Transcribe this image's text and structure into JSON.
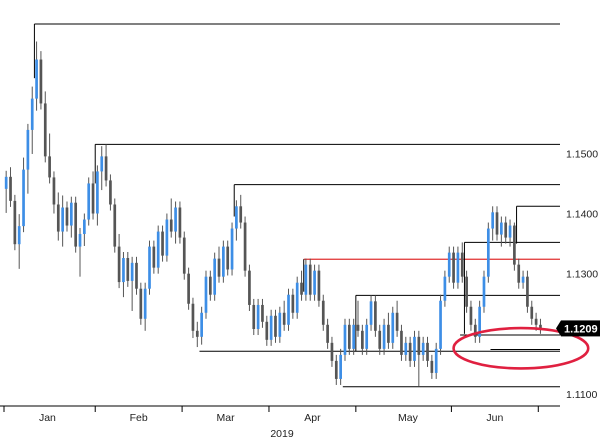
{
  "chart_data": {
    "type": "candlestick",
    "title": "",
    "xlabel": "",
    "ylabel": "",
    "year_label": "2019",
    "ylim": [
      1.108,
      1.1745
    ],
    "x_range": [
      0,
      128
    ],
    "y_ticks": [
      {
        "value": 1.15,
        "label": "1.1500"
      },
      {
        "value": 1.14,
        "label": "1.1400"
      },
      {
        "value": 1.13,
        "label": "1.1300"
      },
      {
        "value": 1.11,
        "label": "1.1100"
      }
    ],
    "x_ticks": [
      {
        "x": 10,
        "label": "Jan"
      },
      {
        "x": 31,
        "label": "Feb"
      },
      {
        "x": 51,
        "label": "Mar"
      },
      {
        "x": 71,
        "label": "Apr"
      },
      {
        "x": 93,
        "label": "May"
      },
      {
        "x": 113,
        "label": "Jun"
      }
    ],
    "month_dividers": [
      0,
      21,
      41,
      61,
      81,
      103,
      123
    ],
    "last_price": {
      "value": 1.1209,
      "label": "1.1209",
      "bg": "#000000",
      "fg": "#ffffff"
    },
    "colors": {
      "up": "#3d8ee6",
      "down": "#555555",
      "level": "#000000",
      "highlight_level": "#e03030",
      "circle": "#e02040"
    },
    "grid": false,
    "legend": "none",
    "levels": [
      {
        "value": 1.1715,
        "x_start": 7,
        "x_end": 128,
        "color": "level"
      },
      {
        "value": 1.1515,
        "x_start": 21,
        "x_end": 128,
        "color": "level"
      },
      {
        "value": 1.1448,
        "x_start": 53,
        "x_end": 128,
        "color": "level"
      },
      {
        "value": 1.1412,
        "x_start": 118,
        "x_end": 128,
        "color": "level"
      },
      {
        "value": 1.1352,
        "x_start": 106,
        "x_end": 128,
        "color": "level"
      },
      {
        "value": 1.1324,
        "x_start": 69,
        "x_end": 128,
        "color": "highlight_level"
      },
      {
        "value": 1.1264,
        "x_start": 81,
        "x_end": 128,
        "color": "level"
      },
      {
        "value": 1.1198,
        "x_start": 105,
        "x_end": 128,
        "color": "level"
      },
      {
        "value": 1.1174,
        "x_start": 112,
        "x_end": 128,
        "color": "level"
      },
      {
        "value": 1.1171,
        "x_start": 45,
        "x_end": 128,
        "color": "level"
      },
      {
        "value": 1.1112,
        "x_start": 78,
        "x_end": 128,
        "color": "level"
      }
    ],
    "level_stems": [
      {
        "x": 7,
        "top": 1.1715,
        "bottom": 1.1625
      },
      {
        "x": 21,
        "top": 1.1515,
        "bottom": 1.145
      },
      {
        "x": 53,
        "top": 1.1448,
        "bottom": 1.1395
      },
      {
        "x": 69,
        "top": 1.1324,
        "bottom": 1.127
      },
      {
        "x": 81,
        "top": 1.1264,
        "bottom": 1.1171
      },
      {
        "x": 106,
        "top": 1.1352,
        "bottom": 1.12
      },
      {
        "x": 118,
        "top": 1.1412,
        "bottom": 1.135
      }
    ],
    "annotation_circle": {
      "cx": 119,
      "cy": 1.1176,
      "rx": 15.5,
      "ry": 0.00335
    },
    "candles": [
      [
        1.1441,
        1.1471,
        1.1401,
        1.1461
      ],
      [
        1.1461,
        1.1477,
        1.1411,
        1.1421
      ],
      [
        1.1421,
        1.1431,
        1.1339,
        1.1349
      ],
      [
        1.1349,
        1.1399,
        1.1308,
        1.1379
      ],
      [
        1.1379,
        1.1493,
        1.1369,
        1.1473
      ],
      [
        1.1473,
        1.1549,
        1.1433,
        1.1539
      ],
      [
        1.1539,
        1.1611,
        1.1499,
        1.1591
      ],
      [
        1.1591,
        1.1686,
        1.1571,
        1.1656
      ],
      [
        1.1656,
        1.167,
        1.1573,
        1.1583
      ],
      [
        1.1583,
        1.1603,
        1.1485,
        1.1495
      ],
      [
        1.1495,
        1.1533,
        1.145,
        1.146
      ],
      [
        1.146,
        1.147,
        1.14,
        1.1415
      ],
      [
        1.1415,
        1.1435,
        1.1355,
        1.137
      ],
      [
        1.137,
        1.143,
        1.1345,
        1.141
      ],
      [
        1.141,
        1.142,
        1.137,
        1.138
      ],
      [
        1.138,
        1.1428,
        1.136,
        1.1418
      ],
      [
        1.1418,
        1.1428,
        1.1335,
        1.1345
      ],
      [
        1.1345,
        1.1376,
        1.1295,
        1.1366
      ],
      [
        1.1366,
        1.14,
        1.1346,
        1.139
      ],
      [
        1.139,
        1.146,
        1.138,
        1.145
      ],
      [
        1.145,
        1.147,
        1.139,
        1.14
      ],
      [
        1.14,
        1.148,
        1.138,
        1.147
      ],
      [
        1.147,
        1.1512,
        1.1439,
        1.1495
      ],
      [
        1.1495,
        1.1515,
        1.1445,
        1.1455
      ],
      [
        1.1455,
        1.1465,
        1.1405,
        1.1415
      ],
      [
        1.1415,
        1.1425,
        1.1335,
        1.1345
      ],
      [
        1.1345,
        1.1366,
        1.1276,
        1.1286
      ],
      [
        1.1286,
        1.1336,
        1.1261,
        1.1326
      ],
      [
        1.1326,
        1.1336,
        1.1278,
        1.1288
      ],
      [
        1.1288,
        1.1328,
        1.1238,
        1.1318
      ],
      [
        1.1318,
        1.1328,
        1.1265,
        1.1275
      ],
      [
        1.1275,
        1.1285,
        1.1215,
        1.1225
      ],
      [
        1.1225,
        1.1285,
        1.1205,
        1.1275
      ],
      [
        1.1275,
        1.1355,
        1.1265,
        1.1345
      ],
      [
        1.1345,
        1.1355,
        1.13,
        1.131
      ],
      [
        1.131,
        1.138,
        1.13,
        1.137
      ],
      [
        1.137,
        1.138,
        1.132,
        1.133
      ],
      [
        1.133,
        1.14,
        1.132,
        1.139
      ],
      [
        1.139,
        1.1425,
        1.136,
        1.137
      ],
      [
        1.137,
        1.142,
        1.135,
        1.141
      ],
      [
        1.141,
        1.142,
        1.135,
        1.136
      ],
      [
        1.136,
        1.137,
        1.129,
        1.13
      ],
      [
        1.13,
        1.131,
        1.124,
        1.125
      ],
      [
        1.125,
        1.126,
        1.1193,
        1.1205
      ],
      [
        1.1205,
        1.122,
        1.1178,
        1.1195
      ],
      [
        1.1195,
        1.1245,
        1.1182,
        1.1235
      ],
      [
        1.1235,
        1.1305,
        1.1225,
        1.1295
      ],
      [
        1.1295,
        1.1305,
        1.1255,
        1.1265
      ],
      [
        1.1265,
        1.1335,
        1.1255,
        1.1325
      ],
      [
        1.1325,
        1.1345,
        1.1285,
        1.1295
      ],
      [
        1.1295,
        1.1355,
        1.1285,
        1.1345
      ],
      [
        1.1345,
        1.1355,
        1.1297,
        1.1307
      ],
      [
        1.1307,
        1.1385,
        1.1297,
        1.1375
      ],
      [
        1.1375,
        1.1422,
        1.1355,
        1.1412
      ],
      [
        1.1412,
        1.1431,
        1.1375,
        1.1385
      ],
      [
        1.1385,
        1.1395,
        1.1295,
        1.1305
      ],
      [
        1.1305,
        1.1315,
        1.1238,
        1.1248
      ],
      [
        1.1248,
        1.1258,
        1.1198,
        1.1208
      ],
      [
        1.1208,
        1.1258,
        1.1198,
        1.1248
      ],
      [
        1.1248,
        1.1258,
        1.121,
        1.122
      ],
      [
        1.122,
        1.123,
        1.118,
        1.119
      ],
      [
        1.119,
        1.124,
        1.118,
        1.123
      ],
      [
        1.123,
        1.124,
        1.1185,
        1.1195
      ],
      [
        1.1195,
        1.1245,
        1.1185,
        1.1235
      ],
      [
        1.1235,
        1.1255,
        1.1205,
        1.1215
      ],
      [
        1.1215,
        1.1275,
        1.1205,
        1.1265
      ],
      [
        1.1265,
        1.1275,
        1.1225,
        1.1235
      ],
      [
        1.1235,
        1.1295,
        1.1225,
        1.1285
      ],
      [
        1.1285,
        1.1305,
        1.1255,
        1.1265
      ],
      [
        1.1265,
        1.1325,
        1.1255,
        1.1315
      ],
      [
        1.1315,
        1.1325,
        1.1255,
        1.1265
      ],
      [
        1.1265,
        1.1315,
        1.1255,
        1.1305
      ],
      [
        1.1305,
        1.1315,
        1.1245,
        1.1255
      ],
      [
        1.1255,
        1.1265,
        1.1205,
        1.1215
      ],
      [
        1.1215,
        1.1225,
        1.1175,
        1.1185
      ],
      [
        1.1185,
        1.1195,
        1.1145,
        1.1155
      ],
      [
        1.1155,
        1.1165,
        1.1115,
        1.1125
      ],
      [
        1.1125,
        1.1175,
        1.1115,
        1.1165
      ],
      [
        1.1165,
        1.1225,
        1.1155,
        1.1215
      ],
      [
        1.1215,
        1.1225,
        1.1165,
        1.1175
      ],
      [
        1.1175,
        1.1225,
        1.1165,
        1.1215
      ],
      [
        1.1215,
        1.1255,
        1.1195,
        1.1205
      ],
      [
        1.1205,
        1.1215,
        1.1165,
        1.1175
      ],
      [
        1.1175,
        1.1225,
        1.1165,
        1.1215
      ],
      [
        1.1215,
        1.1264,
        1.1205,
        1.1254
      ],
      [
        1.1254,
        1.1264,
        1.1195,
        1.1205
      ],
      [
        1.1205,
        1.1215,
        1.1165,
        1.1175
      ],
      [
        1.1175,
        1.1225,
        1.1165,
        1.1215
      ],
      [
        1.1215,
        1.1235,
        1.1175,
        1.1185
      ],
      [
        1.1185,
        1.1245,
        1.1175,
        1.1235
      ],
      [
        1.1235,
        1.1255,
        1.1195,
        1.1205
      ],
      [
        1.1205,
        1.1215,
        1.1155,
        1.1165
      ],
      [
        1.1165,
        1.1195,
        1.1155,
        1.1185
      ],
      [
        1.1185,
        1.1195,
        1.1145,
        1.1155
      ],
      [
        1.1155,
        1.1205,
        1.1145,
        1.1195
      ],
      [
        1.1195,
        1.1205,
        1.1112,
        1.1165
      ],
      [
        1.1165,
        1.1195,
        1.1155,
        1.1185
      ],
      [
        1.1185,
        1.1195,
        1.1145,
        1.1155
      ],
      [
        1.1155,
        1.1165,
        1.1125,
        1.1135
      ],
      [
        1.1135,
        1.1185,
        1.1125,
        1.1175
      ],
      [
        1.1175,
        1.1265,
        1.1165,
        1.1255
      ],
      [
        1.1255,
        1.1305,
        1.1245,
        1.1295
      ],
      [
        1.1295,
        1.1345,
        1.1285,
        1.1335
      ],
      [
        1.1335,
        1.1345,
        1.1275,
        1.1285
      ],
      [
        1.1285,
        1.1345,
        1.1275,
        1.1335
      ],
      [
        1.1335,
        1.1352,
        1.1285,
        1.1295
      ],
      [
        1.1295,
        1.1305,
        1.1235,
        1.1245
      ],
      [
        1.1245,
        1.1255,
        1.1205,
        1.1215
      ],
      [
        1.1215,
        1.1225,
        1.1185,
        1.1195
      ],
      [
        1.1195,
        1.1255,
        1.1185,
        1.1245
      ],
      [
        1.1245,
        1.1305,
        1.1235,
        1.1295
      ],
      [
        1.1295,
        1.1385,
        1.1285,
        1.1375
      ],
      [
        1.1375,
        1.1412,
        1.1355,
        1.1402
      ],
      [
        1.1402,
        1.1412,
        1.1355,
        1.1365
      ],
      [
        1.1365,
        1.1395,
        1.1345,
        1.1385
      ],
      [
        1.1385,
        1.1395,
        1.135,
        1.136
      ],
      [
        1.136,
        1.139,
        1.1345,
        1.138
      ],
      [
        1.138,
        1.1385,
        1.1305,
        1.1315
      ],
      [
        1.1315,
        1.1325,
        1.1275,
        1.1285
      ],
      [
        1.1285,
        1.1305,
        1.1275,
        1.1295
      ],
      [
        1.1295,
        1.1305,
        1.1235,
        1.1245
      ],
      [
        1.1245,
        1.1255,
        1.1215,
        1.1225
      ],
      [
        1.1225,
        1.1235,
        1.1205,
        1.1215
      ],
      [
        1.1215,
        1.1225,
        1.12,
        1.1209
      ]
    ]
  }
}
